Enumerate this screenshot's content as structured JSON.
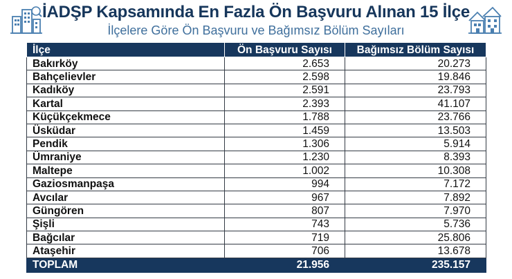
{
  "header": {
    "title": "İADŞP Kapsamında En Fazla Ön Başvuru Alınan 15 İlçe",
    "subtitle": "İlçelere Göre Ön Başvuru ve Bağımsız Bölüm Sayıları",
    "left_icon": "city-buildings-icon",
    "right_icon": "houses-icon"
  },
  "table": {
    "columns": [
      "İlçe",
      "Ön Başvuru Sayısı",
      "Bağımsız Bölüm Sayısı"
    ],
    "rows": [
      {
        "ilce": "Bakırköy",
        "on_basvuru": "2.653",
        "bagimsiz_bolum": "20.273"
      },
      {
        "ilce": "Bahçelievler",
        "on_basvuru": "2.598",
        "bagimsiz_bolum": "19.846"
      },
      {
        "ilce": "Kadıköy",
        "on_basvuru": "2.591",
        "bagimsiz_bolum": "23.793"
      },
      {
        "ilce": "Kartal",
        "on_basvuru": "2.393",
        "bagimsiz_bolum": "41.107"
      },
      {
        "ilce": "Küçükçekmece",
        "on_basvuru": "1.788",
        "bagimsiz_bolum": "23.766"
      },
      {
        "ilce": "Üsküdar",
        "on_basvuru": "1.459",
        "bagimsiz_bolum": "13.503"
      },
      {
        "ilce": "Pendik",
        "on_basvuru": "1.306",
        "bagimsiz_bolum": "5.914"
      },
      {
        "ilce": "Ümraniye",
        "on_basvuru": "1.230",
        "bagimsiz_bolum": "8.393"
      },
      {
        "ilce": "Maltepe",
        "on_basvuru": "1.002",
        "bagimsiz_bolum": "10.308"
      },
      {
        "ilce": "Gaziosmanpaşa",
        "on_basvuru": "994",
        "bagimsiz_bolum": "7.172"
      },
      {
        "ilce": "Avcılar",
        "on_basvuru": "967",
        "bagimsiz_bolum": "7.892"
      },
      {
        "ilce": "Güngören",
        "on_basvuru": "807",
        "bagimsiz_bolum": "7.970"
      },
      {
        "ilce": "Şişli",
        "on_basvuru": "743",
        "bagimsiz_bolum": "5.736"
      },
      {
        "ilce": "Bağcılar",
        "on_basvuru": "719",
        "bagimsiz_bolum": "25.806"
      },
      {
        "ilce": "Ataşehir",
        "on_basvuru": "706",
        "bagimsiz_bolum": "13.678"
      }
    ],
    "total": {
      "ilce": "TOPLAM",
      "on_basvuru": "21.956",
      "bagimsiz_bolum": "235.157"
    }
  },
  "colors": {
    "header_bg": "#17375d",
    "title": "#16365b",
    "subtitle": "#3f6f9c",
    "icon": "#4a7fb0"
  }
}
